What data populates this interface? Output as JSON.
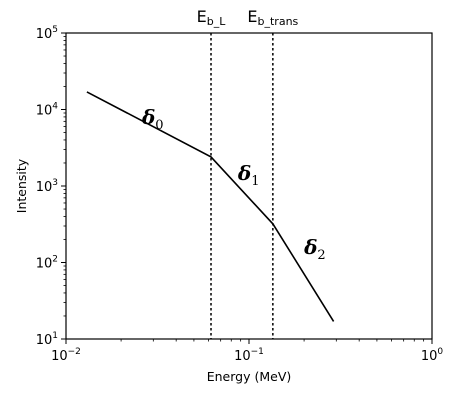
{
  "chart_data": {
    "type": "line",
    "xscale": "log",
    "yscale": "log",
    "xlabel": "Energy (MeV)",
    "ylabel": "Intensity",
    "xlim": [
      0.01,
      1
    ],
    "ylim": [
      10,
      100000
    ],
    "grid": false,
    "x_ticks": [
      {
        "value": 0.01,
        "base": "10",
        "exp": "−2"
      },
      {
        "value": 0.1,
        "base": "10",
        "exp": "−1"
      },
      {
        "value": 1,
        "base": "10",
        "exp": "0"
      }
    ],
    "y_ticks": [
      {
        "value": 10,
        "base": "10",
        "exp": "1"
      },
      {
        "value": 100,
        "base": "10",
        "exp": "2"
      },
      {
        "value": 1000,
        "base": "10",
        "exp": "3"
      },
      {
        "value": 10000,
        "base": "10",
        "exp": "4"
      },
      {
        "value": 100000,
        "base": "10",
        "exp": "5"
      }
    ],
    "series": [
      {
        "x": [
          0.013,
          0.062,
          0.135,
          0.29
        ],
        "y": [
          17000,
          2400,
          320,
          17
        ]
      }
    ],
    "vlines": [
      {
        "x": 0.062,
        "label_base": "E",
        "label_sub": "b_L"
      },
      {
        "x": 0.135,
        "label_base": "E",
        "label_sub": "b_trans"
      }
    ],
    "segment_labels": [
      {
        "base": "δ",
        "sub": "0",
        "x": 0.026,
        "y": 6500
      },
      {
        "base": "δ",
        "sub": "1",
        "x": 0.087,
        "y": 1200
      },
      {
        "base": "δ",
        "sub": "2",
        "x": 0.2,
        "y": 130
      }
    ]
  }
}
